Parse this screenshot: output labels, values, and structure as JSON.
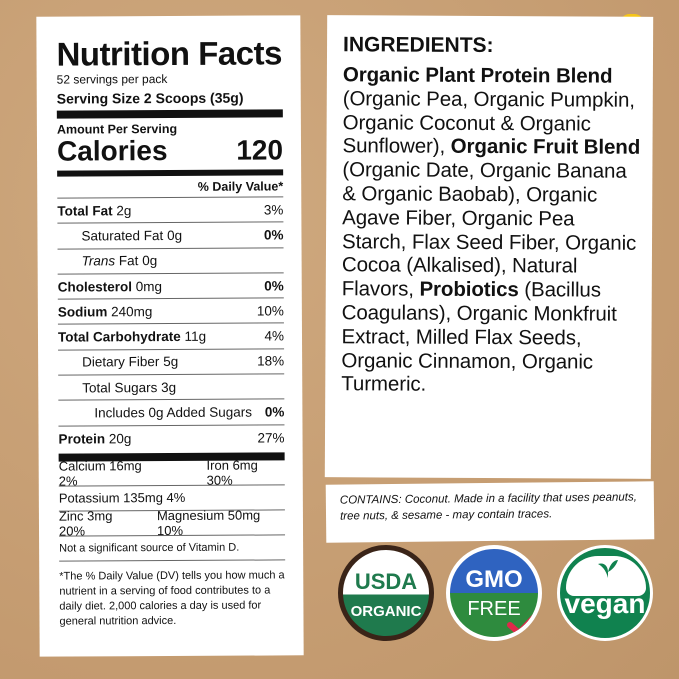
{
  "nutrition": {
    "title": "Nutrition Facts",
    "servings": "52 servings per pack",
    "serving_size": "Serving Size 2 Scoops (35g)",
    "amount_per_serving": "Amount Per Serving",
    "calories_label": "Calories",
    "calories": "120",
    "daily_value_header": "% Daily Value*",
    "rows": [
      {
        "name": "Total Fat",
        "amount": "2g",
        "pct": "3%"
      },
      {
        "name": "Saturated Fat",
        "amount": "0g",
        "pct": "0%"
      },
      {
        "name": "Trans",
        "name2": "Fat",
        "amount": "0g",
        "pct": ""
      },
      {
        "name": "Cholesterol",
        "amount": "0mg",
        "pct": "0%"
      },
      {
        "name": "Sodium",
        "amount": "240mg",
        "pct": "10%"
      },
      {
        "name": "Total Carbohydrate",
        "amount": "11g",
        "pct": "4%"
      },
      {
        "name": "Dietary Fiber",
        "amount": "5g",
        "pct": "18%"
      },
      {
        "name": "Total Sugars",
        "amount": "3g",
        "pct": ""
      },
      {
        "name": "Includes 0g Added Sugars",
        "amount": "",
        "pct": "0%"
      },
      {
        "name": "Protein",
        "amount": "20g",
        "pct": "27%"
      }
    ],
    "minerals": [
      [
        "Calcium 16mg 2%",
        "Iron 6mg 30%"
      ],
      [
        "Potassium 135mg 4%",
        ""
      ],
      [
        "Zinc 3mg 20%",
        "Magnesium 50mg 10%"
      ]
    ],
    "vitamin_note": "Not a significant source of Vitamin D.",
    "footnote": "*The % Daily Value (DV) tells you how much a nutrient in a serving of food contributes to a daily diet. 2,000 calories a day is used for general nutrition advice."
  },
  "ingredients": {
    "heading": "INGREDIENTS:",
    "segments": [
      {
        "t": "Organic Plant Protein Blend",
        "b": true
      },
      {
        "t": " (Organic Pea, Organic Pumpkin, Organic Coconut & Organic Sunflower), ",
        "b": false
      },
      {
        "t": "Organic Fruit Blend",
        "b": true
      },
      {
        "t": " (Organic Date, Organic Banana & Organic Baobab), Organic Agave Fiber, Organic Pea Starch, Flax Seed Fiber, Organic Cocoa (Alkalised), Natural Flavors, ",
        "b": false
      },
      {
        "t": "Probiotics",
        "b": true
      },
      {
        "t": " (Bacillus Coagulans), Organic Monkfruit Extract, Milled Flax Seeds, Organic Cinnamon, Organic Turmeric.",
        "b": false
      }
    ]
  },
  "contains": "CONTAINS: Coconut. Made in a facility that uses peanuts, tree nuts, & sesame - may contain traces.",
  "badges": {
    "usda": {
      "top": "USDA",
      "bottom": "ORGANIC"
    },
    "gmo": {
      "top": "GMO",
      "bottom": "FREE"
    },
    "vegan": {
      "label": "vegan"
    }
  },
  "colors": {
    "kraft": "#c9a27a",
    "usda_green": "#1f7a4d",
    "gmo_blue": "#2f63c0",
    "gmo_green": "#2e8b3e",
    "check_red": "#e0294a",
    "vegan_green": "#10824f",
    "sun": "#f5c518"
  }
}
